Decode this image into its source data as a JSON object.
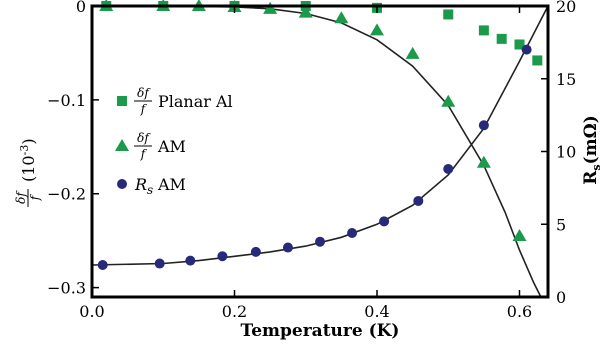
{
  "chart_data": {
    "type": "scatter",
    "xlabel": "Temperature (K)",
    "ylabel_left": {
      "frac_num": "δf",
      "frac_den": "f",
      "unit": "(10",
      "exponent": "-3",
      "close": ")"
    },
    "ylabel_right": {
      "main": "R",
      "sub": "s",
      "unit": "(mΩ)"
    },
    "xlim": [
      0.0,
      0.64
    ],
    "ylim_left": [
      -0.31,
      0.0
    ],
    "ylim_right": [
      0,
      20
    ],
    "x_ticks": [
      "0.0",
      "0.2",
      "0.4",
      "0.6"
    ],
    "y_left_ticks": [
      "0",
      "−0.1",
      "−0.2",
      "−0.3"
    ],
    "y_right_ticks": [
      "0",
      "5",
      "10",
      "15",
      "20"
    ],
    "colors": {
      "green": "#1a9a4a",
      "navy": "#262a78",
      "line": "#222222"
    },
    "legend": [
      {
        "marker": "square",
        "frac_num": "δf",
        "frac_den": "f",
        "label": "Planar Al"
      },
      {
        "marker": "triangle",
        "frac_num": "δf",
        "frac_den": "f",
        "label": "AM"
      },
      {
        "marker": "circle",
        "symbol": "R",
        "sub": "s",
        "label": "AM"
      }
    ],
    "series": [
      {
        "name": "δf/f Planar Al",
        "axis": "left",
        "marker": "square",
        "x": [
          0.02,
          0.1,
          0.2,
          0.3,
          0.4,
          0.5,
          0.55,
          0.575,
          0.6,
          0.625
        ],
        "y": [
          0.0,
          0.0,
          0.0,
          0.0,
          -0.002,
          -0.009,
          -0.026,
          -0.035,
          -0.041,
          -0.058
        ]
      },
      {
        "name": "δf/f AM",
        "axis": "left",
        "marker": "triangle",
        "x": [
          0.02,
          0.1,
          0.15,
          0.2,
          0.25,
          0.3,
          0.35,
          0.4,
          0.45,
          0.5,
          0.55,
          0.6
        ],
        "y": [
          0.0,
          0.0,
          0.0,
          -0.001,
          -0.003,
          -0.007,
          -0.013,
          -0.026,
          -0.051,
          -0.102,
          -0.167,
          -0.245
        ]
      },
      {
        "name": "Rs AM",
        "axis": "right",
        "marker": "circle",
        "x": [
          0.015,
          0.095,
          0.138,
          0.183,
          0.23,
          0.275,
          0.32,
          0.365,
          0.41,
          0.458,
          0.5,
          0.55,
          0.61
        ],
        "y": [
          2.2,
          2.3,
          2.5,
          2.8,
          3.1,
          3.4,
          3.8,
          4.4,
          5.2,
          6.6,
          8.8,
          11.8,
          17.0
        ]
      }
    ],
    "fits": [
      {
        "axis": "left",
        "x": [
          0.0,
          0.1,
          0.2,
          0.25,
          0.3,
          0.35,
          0.4,
          0.45,
          0.5,
          0.55,
          0.58,
          0.6,
          0.62,
          0.63
        ],
        "y": [
          0.0,
          0.0,
          -0.001,
          -0.003,
          -0.008,
          -0.018,
          -0.036,
          -0.064,
          -0.106,
          -0.17,
          -0.22,
          -0.26,
          -0.295,
          -0.31
        ]
      },
      {
        "axis": "right",
        "x": [
          0.0,
          0.1,
          0.15,
          0.2,
          0.25,
          0.3,
          0.35,
          0.4,
          0.45,
          0.5,
          0.55,
          0.6,
          0.64
        ],
        "y": [
          2.2,
          2.3,
          2.5,
          2.8,
          3.1,
          3.5,
          4.1,
          5.0,
          6.3,
          8.4,
          11.6,
          16.2,
          20.0
        ]
      }
    ]
  }
}
